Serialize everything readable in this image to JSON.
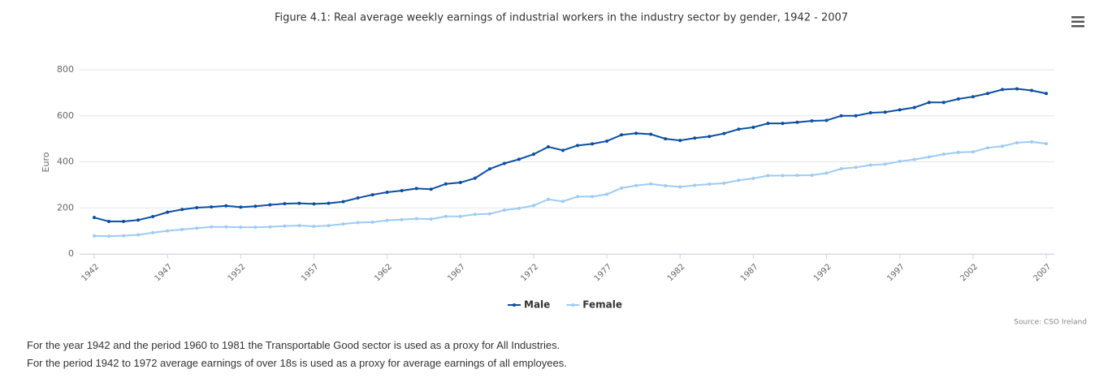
{
  "chart_data": {
    "type": "line",
    "title": "Figure 4.1: Real average weekly earnings of industrial workers in the industry sector by gender, 1942 - 2007",
    "y_label": "Euro",
    "source": "Source: CSO Ireland",
    "notes": [
      "For the year 1942 and the period 1960 to 1981 the Transportable Good sector is used as a proxy for All Industries.",
      "For the period 1942 to 1972 average earnings of over 18s is used as a proxy for average earnings of all employees."
    ],
    "x": [
      1942,
      1943,
      1944,
      1945,
      1946,
      1947,
      1948,
      1949,
      1950,
      1951,
      1952,
      1953,
      1954,
      1955,
      1956,
      1957,
      1958,
      1959,
      1960,
      1961,
      1962,
      1963,
      1964,
      1965,
      1966,
      1967,
      1968,
      1969,
      1970,
      1971,
      1972,
      1973,
      1974,
      1975,
      1976,
      1977,
      1978,
      1979,
      1980,
      1981,
      1982,
      1983,
      1984,
      1985,
      1986,
      1987,
      1988,
      1989,
      1990,
      1991,
      1992,
      1993,
      1994,
      1995,
      1996,
      1997,
      1998,
      1999,
      2000,
      2001,
      2002,
      2003,
      2004,
      2005,
      2006,
      2007
    ],
    "xlim": [
      1942,
      2007
    ],
    "xticks": [
      1942,
      1947,
      1952,
      1957,
      1962,
      1967,
      1972,
      1977,
      1982,
      1987,
      1992,
      1997,
      2002,
      2007
    ],
    "ylim": [
      0,
      800
    ],
    "yticks": [
      0,
      200,
      400,
      600,
      800
    ],
    "grid": true,
    "legend": "bottom",
    "series": [
      {
        "name": "Male",
        "color": "#0b4ea2",
        "values": [
          158,
          141,
          141,
          147,
          162,
          181,
          193,
          201,
          204,
          209,
          203,
          207,
          213,
          218,
          220,
          217,
          220,
          227,
          243,
          257,
          268,
          275,
          284,
          281,
          304,
          310,
          329,
          369,
          393,
          411,
          433,
          465,
          450,
          471,
          478,
          490,
          517,
          524,
          520,
          500,
          493,
          503,
          510,
          523,
          542,
          550,
          567,
          567,
          572,
          578,
          580,
          600,
          600,
          613,
          616,
          626,
          636,
          658,
          658,
          673,
          683,
          697,
          714,
          717,
          710,
          697
        ]
      },
      {
        "name": "Female",
        "color": "#9ecbf3",
        "values": [
          78,
          77,
          79,
          83,
          92,
          100,
          106,
          112,
          117,
          117,
          116,
          116,
          117,
          121,
          123,
          120,
          123,
          130,
          136,
          138,
          146,
          149,
          153,
          151,
          163,
          163,
          172,
          174,
          190,
          198,
          210,
          237,
          228,
          249,
          249,
          259,
          286,
          297,
          304,
          296,
          291,
          298,
          303,
          307,
          320,
          328,
          340,
          340,
          341,
          342,
          351,
          370,
          376,
          386,
          390,
          402,
          410,
          421,
          433,
          441,
          443,
          461,
          468,
          483,
          487,
          479
        ]
      }
    ]
  }
}
